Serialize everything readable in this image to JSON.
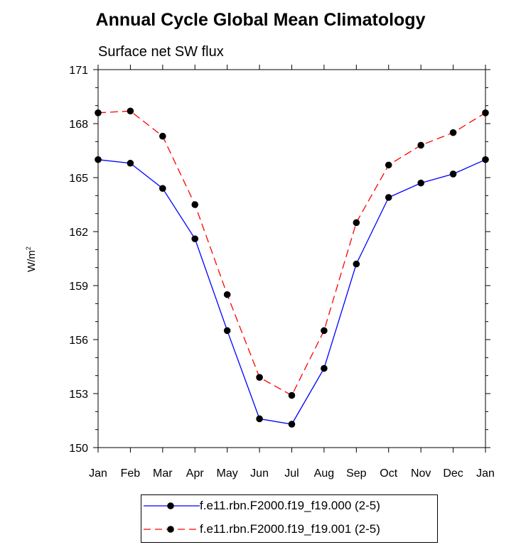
{
  "chart_data": {
    "type": "line",
    "title": "Annual Cycle Global Mean Climatology",
    "subtitle": "Surface net SW flux",
    "ylabel": "W/m",
    "ylabel_sup": "2",
    "categories": [
      "Jan",
      "Feb",
      "Mar",
      "Apr",
      "May",
      "Jun",
      "Jul",
      "Aug",
      "Sep",
      "Oct",
      "Nov",
      "Dec",
      "Jan"
    ],
    "ylim": [
      150,
      171
    ],
    "yticks": [
      150,
      153,
      156,
      159,
      162,
      165,
      168,
      171
    ],
    "legend_position": "bottom-center",
    "series": [
      {
        "name": "f.e11.rbn.F2000.f19_f19.000 (2-5)",
        "color": "#0000ff",
        "dash": "solid",
        "marker": "filled-circle",
        "values": [
          166.0,
          165.8,
          164.4,
          161.6,
          156.5,
          151.6,
          151.3,
          154.4,
          160.2,
          163.9,
          164.7,
          165.2,
          166.0
        ]
      },
      {
        "name": "f.e11.rbn.F2000.f19_f19.001 (2-5)",
        "color": "#ff0000",
        "dash": "dashed",
        "marker": "filled-circle",
        "values": [
          168.6,
          168.7,
          167.3,
          163.5,
          158.5,
          153.9,
          152.9,
          156.5,
          162.5,
          165.7,
          166.8,
          167.5,
          168.6
        ]
      }
    ]
  }
}
